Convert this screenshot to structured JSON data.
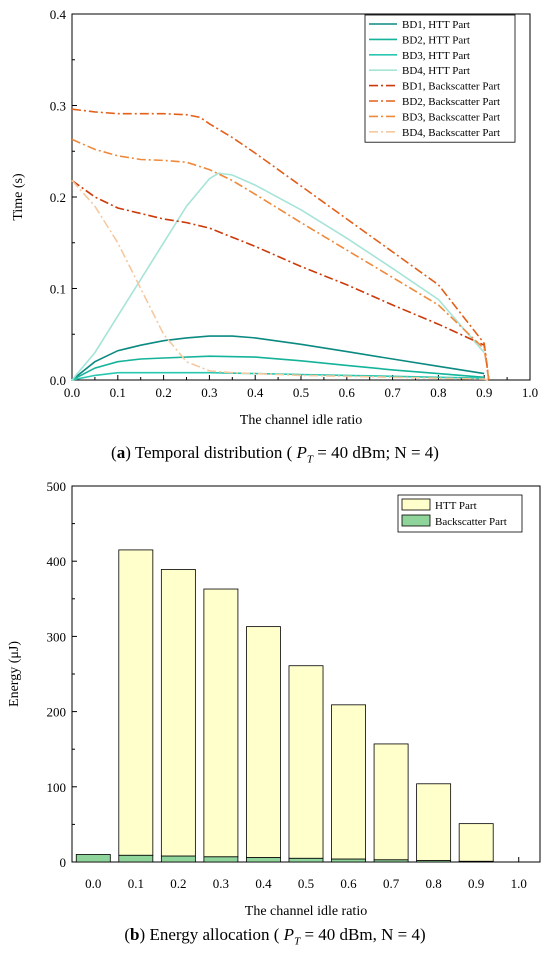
{
  "captions": {
    "a": {
      "letter": "a",
      "before": " Temporal distribution (",
      "symbol": "P",
      "subscript": "T",
      "after": " = 40 dBm; N = 4)"
    },
    "b": {
      "letter": "b",
      "before": " Energy allocation (",
      "symbol": "P",
      "subscript": "T",
      "after": " = 40 dBm, N = 4)"
    }
  },
  "chart_data": [
    {
      "type": "line",
      "xlabel": "The channel idle ratio",
      "ylabel": "Time (s)",
      "xlim": [
        0.0,
        1.0
      ],
      "ylim": [
        0.0,
        0.4
      ],
      "xticks": [
        "0.0",
        "0.1",
        "0.2",
        "0.3",
        "0.4",
        "0.5",
        "0.6",
        "0.7",
        "0.8",
        "0.9",
        "1.0"
      ],
      "yticks": [
        "0.0",
        "0.1",
        "0.2",
        "0.3",
        "0.4"
      ],
      "legend_position": "top-right",
      "grid": false,
      "series": [
        {
          "name": "BD1, HTT Part",
          "color": "#0b8a82",
          "dash": "solid",
          "x": [
            0.0,
            0.05,
            0.1,
            0.15,
            0.2,
            0.25,
            0.3,
            0.35,
            0.4,
            0.5,
            0.6,
            0.7,
            0.8,
            0.9
          ],
          "y": [
            0.0,
            0.02,
            0.032,
            0.038,
            0.043,
            0.046,
            0.048,
            0.048,
            0.046,
            0.039,
            0.031,
            0.023,
            0.015,
            0.007
          ]
        },
        {
          "name": "BD2, HTT Part",
          "color": "#14b39a",
          "dash": "solid",
          "x": [
            0.0,
            0.05,
            0.1,
            0.15,
            0.2,
            0.3,
            0.4,
            0.5,
            0.6,
            0.7,
            0.8,
            0.9
          ],
          "y": [
            0.0,
            0.013,
            0.02,
            0.023,
            0.024,
            0.026,
            0.025,
            0.021,
            0.016,
            0.011,
            0.007,
            0.003
          ]
        },
        {
          "name": "BD3, HTT Part",
          "color": "#29c7b0",
          "dash": "solid",
          "x": [
            0.0,
            0.05,
            0.1,
            0.15,
            0.2,
            0.3,
            0.4,
            0.5,
            0.6,
            0.7,
            0.8,
            0.9
          ],
          "y": [
            0.0,
            0.005,
            0.008,
            0.008,
            0.008,
            0.008,
            0.007,
            0.006,
            0.005,
            0.004,
            0.003,
            0.002
          ]
        },
        {
          "name": "BD4, HTT Part",
          "color": "#a6e4d8",
          "dash": "solid",
          "x": [
            0.0,
            0.05,
            0.1,
            0.15,
            0.2,
            0.25,
            0.3,
            0.32,
            0.35,
            0.4,
            0.5,
            0.6,
            0.7,
            0.8,
            0.9
          ],
          "y": [
            0.0,
            0.03,
            0.07,
            0.11,
            0.15,
            0.19,
            0.22,
            0.226,
            0.224,
            0.213,
            0.186,
            0.155,
            0.122,
            0.088,
            0.03
          ]
        },
        {
          "name": "BD1, Backscatter Part",
          "color": "#cc3a0a",
          "dash": "dashdot",
          "x": [
            0.0,
            0.05,
            0.1,
            0.15,
            0.2,
            0.25,
            0.3,
            0.4,
            0.5,
            0.6,
            0.7,
            0.8,
            0.9,
            0.905,
            0.91
          ],
          "y": [
            0.218,
            0.2,
            0.188,
            0.182,
            0.176,
            0.172,
            0.166,
            0.146,
            0.124,
            0.104,
            0.082,
            0.061,
            0.038,
            0.02,
            0.0
          ]
        },
        {
          "name": "BD2, Backscatter Part",
          "color": "#e3601b",
          "dash": "dashdot",
          "x": [
            0.0,
            0.05,
            0.1,
            0.15,
            0.2,
            0.25,
            0.28,
            0.3,
            0.35,
            0.4,
            0.5,
            0.6,
            0.7,
            0.8,
            0.9,
            0.905,
            0.91
          ],
          "y": [
            0.296,
            0.293,
            0.291,
            0.291,
            0.291,
            0.29,
            0.287,
            0.28,
            0.265,
            0.248,
            0.212,
            0.176,
            0.14,
            0.104,
            0.04,
            0.02,
            0.0
          ]
        },
        {
          "name": "BD3, Backscatter Part",
          "color": "#ef8a3c",
          "dash": "dashdot",
          "x": [
            0.0,
            0.05,
            0.1,
            0.15,
            0.2,
            0.25,
            0.3,
            0.35,
            0.4,
            0.5,
            0.6,
            0.7,
            0.8,
            0.9,
            0.905,
            0.91
          ],
          "y": [
            0.263,
            0.252,
            0.245,
            0.241,
            0.24,
            0.238,
            0.23,
            0.218,
            0.203,
            0.172,
            0.142,
            0.112,
            0.082,
            0.034,
            0.017,
            0.0
          ]
        },
        {
          "name": "BD4, Backscatter Part",
          "color": "#f5c9a0",
          "dash": "dashdot",
          "x": [
            0.0,
            0.05,
            0.1,
            0.15,
            0.2,
            0.25,
            0.3,
            0.35,
            0.4,
            0.5,
            0.6,
            0.7,
            0.8,
            0.9,
            0.91
          ],
          "y": [
            0.218,
            0.19,
            0.15,
            0.1,
            0.05,
            0.02,
            0.01,
            0.008,
            0.007,
            0.005,
            0.004,
            0.003,
            0.002,
            0.001,
            0.0
          ]
        }
      ]
    },
    {
      "type": "bar",
      "stacked": true,
      "xlabel": "The channel idle ratio",
      "ylabel": "Energy (μJ)",
      "ylim": [
        0,
        500
      ],
      "yticks": [
        "0",
        "100",
        "200",
        "300",
        "400",
        "500"
      ],
      "categories": [
        "0.0",
        "0.1",
        "0.2",
        "0.3",
        "0.4",
        "0.5",
        "0.6",
        "0.7",
        "0.8",
        "0.9",
        "1.0"
      ],
      "legend_position": "top-right",
      "grid": false,
      "series": [
        {
          "name": "Backscatter Part",
          "color": "#8fd49a",
          "values": [
            10,
            9,
            8,
            7,
            6,
            5,
            4,
            3,
            2,
            1,
            0
          ]
        },
        {
          "name": "HTT Part",
          "color": "#ffffcc",
          "values": [
            0,
            406,
            381,
            356,
            307,
            256,
            205,
            154,
            102,
            50,
            0
          ]
        }
      ]
    }
  ]
}
